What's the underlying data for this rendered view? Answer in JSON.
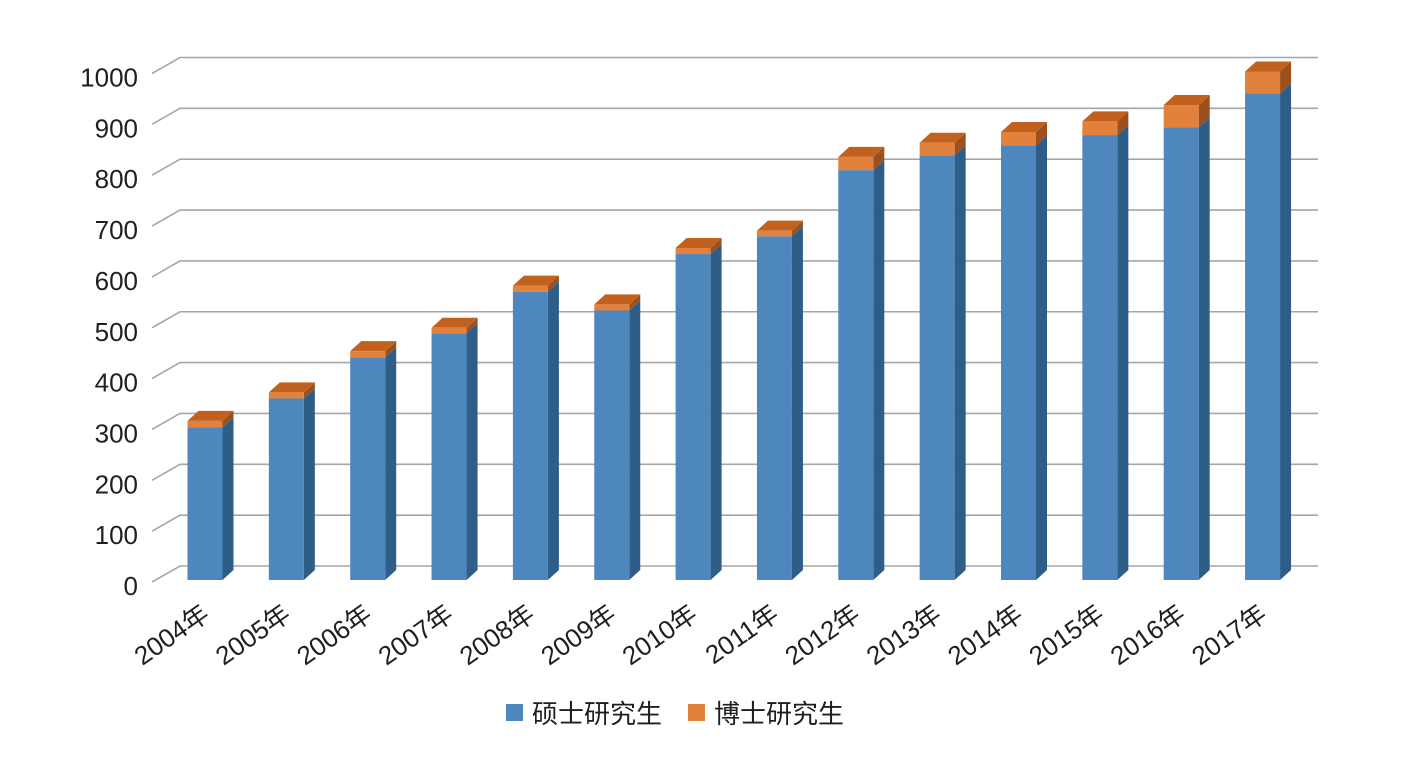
{
  "chart_data": {
    "type": "bar",
    "variant": "3d-stacked-column",
    "title": "",
    "xlabel": "",
    "ylabel": "",
    "categories": [
      "2004年",
      "2005年",
      "2006年",
      "2007年",
      "2008年",
      "2009年",
      "2010年",
      "2011年",
      "2012年",
      "2013年",
      "2014年",
      "2015年",
      "2016年",
      "2017年"
    ],
    "series": [
      {
        "name": "硕士研究生",
        "color": "#4E86BE",
        "side_color": "#2E5E88",
        "values": [
          300,
          357,
          438,
          485,
          567,
          530,
          641,
          676,
          806,
          835,
          855,
          875,
          890,
          957
        ]
      },
      {
        "name": "博士研究生",
        "color": "#E2813C",
        "top_color": "#C2611E",
        "side_color": "#9C501C",
        "values": [
          13,
          12,
          12,
          11,
          12,
          12,
          12,
          11,
          26,
          25,
          26,
          27,
          44,
          43
        ]
      }
    ],
    "ylim": [
      0,
      1000
    ],
    "ytick_step": 100,
    "yticks": [
      0,
      100,
      200,
      300,
      400,
      500,
      600,
      700,
      800,
      900,
      1000
    ],
    "grid": true,
    "gridline_color": "#A6A6A6",
    "text_color": "#1f1f1f",
    "background": "#FFFFFF",
    "legend_position": "bottom"
  }
}
